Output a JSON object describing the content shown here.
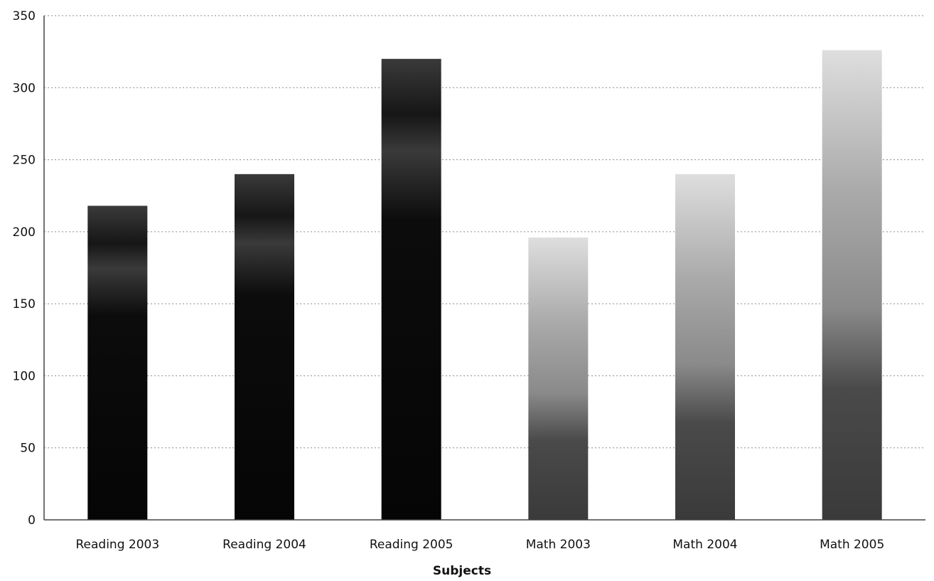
{
  "chart_data": {
    "type": "bar",
    "categories": [
      "Reading 2003",
      "Reading 2004",
      "Reading 2005",
      "Math 2003",
      "Math 2004",
      "Math 2005"
    ],
    "values": [
      218,
      240,
      320,
      196,
      240,
      326
    ],
    "title": "",
    "xlabel": "Subjects",
    "ylabel": "",
    "ylim": [
      0,
      350
    ],
    "yticks": [
      0,
      50,
      100,
      150,
      200,
      250,
      300,
      350
    ],
    "grid": true,
    "legend": "none",
    "colors": {
      "reading_top": "#3a3a3a",
      "reading_bottom": "#050505",
      "math_top": "#dcdcdc",
      "math_bottom": "#3c3c3c"
    }
  }
}
